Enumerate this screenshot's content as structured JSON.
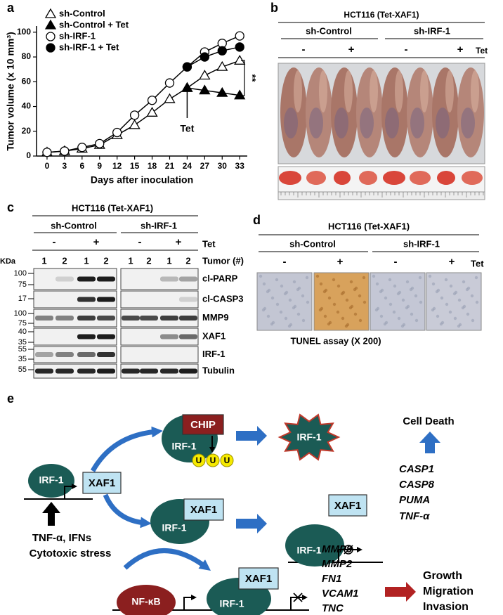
{
  "panel_labels": [
    "a",
    "b",
    "c",
    "d",
    "e"
  ],
  "chart_data": {
    "type": "line",
    "xlabel": "Days after inoculation",
    "ylabel": "Tumor volume (x 10 mm³)",
    "x": [
      0,
      3,
      6,
      9,
      12,
      15,
      18,
      21,
      24,
      27,
      30,
      33
    ],
    "xlim": [
      -1.8,
      34.3
    ],
    "ylim": [
      0,
      105
    ],
    "xticks": [
      0,
      3,
      6,
      9,
      12,
      15,
      18,
      21,
      24,
      27,
      30,
      33
    ],
    "yticks": [
      0,
      20,
      40,
      60,
      80,
      100
    ],
    "series": [
      {
        "name": "sh-Control",
        "color": "#000000",
        "marker": "triangle",
        "fill": "#ffffff",
        "values": [
          3,
          4,
          6,
          9,
          17,
          25,
          35,
          46,
          55,
          65,
          72,
          77
        ]
      },
      {
        "name": "sh-Control + Tet",
        "color": "#000000",
        "marker": "triangle",
        "fill": "#000000",
        "values": [
          null,
          null,
          null,
          null,
          null,
          null,
          null,
          null,
          55,
          53,
          51,
          49
        ]
      },
      {
        "name": "sh-IRF-1",
        "color": "#000000",
        "marker": "circle",
        "fill": "#ffffff",
        "values": [
          3,
          4,
          7,
          10,
          19,
          33,
          45,
          59,
          72,
          84,
          91,
          97
        ]
      },
      {
        "name": "sh-IRF-1 + Tet",
        "color": "#000000",
        "marker": "circle",
        "fill": "#000000",
        "values": [
          null,
          null,
          null,
          null,
          null,
          null,
          null,
          null,
          72,
          80,
          85,
          88
        ]
      }
    ],
    "annotations": [
      "Tet",
      "**"
    ]
  },
  "panel_b": {
    "title": "HCT116 (Tet-XAF1)",
    "groups": [
      "sh-Control",
      "sh-IRF-1"
    ],
    "treatment": [
      "-",
      "+",
      "-",
      "+"
    ],
    "treatment_label": "Tet"
  },
  "panel_c": {
    "title": "HCT116 (Tet-XAF1)",
    "groups": [
      "sh-Control",
      "sh-IRF-1"
    ],
    "treatment": [
      "-",
      "+",
      "-",
      "+"
    ],
    "treatment_label": "Tet",
    "size_unit": "KDa",
    "lane_header": "Tumor (#)",
    "lanes": [
      1,
      2,
      1,
      2,
      1,
      2,
      1,
      2
    ],
    "rows": [
      {
        "label": "cl-PARP",
        "markers": [
          100,
          75
        ]
      },
      {
        "label": "cl-CASP3",
        "markers": [
          17
        ]
      },
      {
        "label": "MMP9",
        "markers": [
          100,
          75
        ]
      },
      {
        "label": "XAF1",
        "markers": [
          40,
          35
        ]
      },
      {
        "label": "IRF-1",
        "markers": [
          55,
          35
        ]
      },
      {
        "label": "Tubulin",
        "markers": [
          55
        ]
      }
    ]
  },
  "panel_d": {
    "title": "HCT116 (Tet-XAF1)",
    "groups": [
      "sh-Control",
      "sh-IRF-1"
    ],
    "treatment": [
      "-",
      "+",
      "-",
      "+"
    ],
    "treatment_label": "Tet",
    "caption": "TUNEL assay (X 200)"
  },
  "panel_e": {
    "nodes": [
      "IRF-1",
      "XAF1",
      "IRF-1",
      "CHIP",
      "IRF-1",
      "IRF-1",
      "XAF1",
      "IRF-1",
      "XAF1",
      "NF-κB",
      "IRF-1",
      "XAF1"
    ],
    "ubiquitin": [
      "U",
      "U",
      "U"
    ],
    "stimulus": [
      "TNF-α, IFNs",
      "Cytotoxic stress"
    ],
    "outcome_death": "Cell Death",
    "death_genes": [
      "CASP1",
      "CASP8",
      "PUMA",
      "TNF-α"
    ],
    "metastasis_genes": [
      "MMP9",
      "MMP2",
      "FN1",
      "VCAM1",
      "TNC"
    ],
    "outcomes": [
      "Growth",
      "Migration",
      "Invasion"
    ]
  }
}
